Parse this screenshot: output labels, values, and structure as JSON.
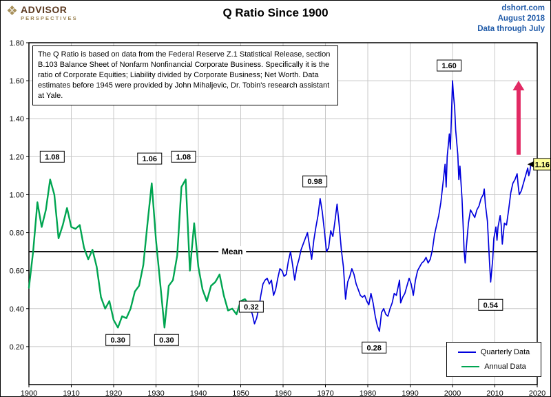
{
  "header": {
    "logo": {
      "mark": "❖",
      "top": "ADVISOR",
      "bottom": "PERSPECTIVES"
    },
    "title": "Q Ratio Since 1900",
    "right": {
      "site": "dshort.com",
      "date": "August 2018",
      "note": "Data through July"
    }
  },
  "annotation_text": "The Q Ratio is based on data from the Federal Reserve Z.1 Statistical Release, section B.103 Balance Sheet of Nonfarm Nonfinancial Corporate Business. Specifically it is the ratio of Corporate Equities; Liability divided by Corporate Business; Net Worth.  Data estimates before 1945 were provided by John Mihaljevic, Dr. Tobin's research assistant at Yale.",
  "colors": {
    "grid": "#c8c8c8",
    "axis": "#000000",
    "blue_series": "#0000dc",
    "green_series": "#00a551",
    "header_blue": "#1f5aa8",
    "callout_bg": "#ffff99",
    "arrow": "#e22a64"
  },
  "chart_data": {
    "type": "line",
    "title": "Q Ratio Since 1900",
    "xlabel": "",
    "ylabel": "",
    "x_range": [
      1900,
      2020
    ],
    "y_range": [
      0,
      1.8
    ],
    "x_ticks": [
      1900,
      1910,
      1920,
      1930,
      1940,
      1950,
      1960,
      1970,
      1980,
      1990,
      2000,
      2010,
      2020
    ],
    "y_ticks": [
      0.2,
      0.4,
      0.6,
      0.8,
      1.0,
      1.2,
      1.4,
      1.6,
      1.8
    ],
    "grid": true,
    "mean": {
      "value": 0.7,
      "label": "Mean",
      "label_x": 1948
    },
    "series": [
      {
        "name": "Annual Data",
        "color": "#00a551",
        "width": 2.4,
        "points": [
          [
            1900,
            0.51
          ],
          [
            1901,
            0.7
          ],
          [
            1902,
            0.96
          ],
          [
            1903,
            0.83
          ],
          [
            1904,
            0.92
          ],
          [
            1905,
            1.08
          ],
          [
            1906,
            1.0
          ],
          [
            1907,
            0.77
          ],
          [
            1908,
            0.84
          ],
          [
            1909,
            0.93
          ],
          [
            1910,
            0.83
          ],
          [
            1911,
            0.82
          ],
          [
            1912,
            0.84
          ],
          [
            1913,
            0.72
          ],
          [
            1914,
            0.66
          ],
          [
            1915,
            0.71
          ],
          [
            1916,
            0.62
          ],
          [
            1917,
            0.46
          ],
          [
            1918,
            0.4
          ],
          [
            1919,
            0.44
          ],
          [
            1920,
            0.34
          ],
          [
            1921,
            0.3
          ],
          [
            1922,
            0.36
          ],
          [
            1923,
            0.35
          ],
          [
            1924,
            0.4
          ],
          [
            1925,
            0.49
          ],
          [
            1926,
            0.52
          ],
          [
            1927,
            0.63
          ],
          [
            1928,
            0.85
          ],
          [
            1929,
            1.06
          ],
          [
            1930,
            0.76
          ],
          [
            1931,
            0.53
          ],
          [
            1932,
            0.3
          ],
          [
            1933,
            0.52
          ],
          [
            1934,
            0.55
          ],
          [
            1935,
            0.68
          ],
          [
            1936,
            1.04
          ],
          [
            1937,
            1.08
          ],
          [
            1938,
            0.6
          ],
          [
            1939,
            0.85
          ],
          [
            1940,
            0.62
          ],
          [
            1941,
            0.5
          ],
          [
            1942,
            0.44
          ],
          [
            1943,
            0.52
          ],
          [
            1944,
            0.54
          ],
          [
            1945,
            0.58
          ],
          [
            1946,
            0.47
          ],
          [
            1947,
            0.39
          ],
          [
            1948,
            0.4
          ],
          [
            1949,
            0.37
          ],
          [
            1950,
            0.44
          ],
          [
            1951,
            0.45
          ],
          [
            1952,
            0.42
          ]
        ]
      },
      {
        "name": "Quarterly Data",
        "color": "#0000dc",
        "width": 1.7,
        "points": [
          [
            1952.25,
            0.4
          ],
          [
            1952.75,
            0.37
          ],
          [
            1953.25,
            0.32
          ],
          [
            1953.75,
            0.35
          ],
          [
            1954.25,
            0.4
          ],
          [
            1954.75,
            0.47
          ],
          [
            1955.25,
            0.53
          ],
          [
            1955.75,
            0.55
          ],
          [
            1956.25,
            0.56
          ],
          [
            1956.75,
            0.53
          ],
          [
            1957.25,
            0.55
          ],
          [
            1957.75,
            0.47
          ],
          [
            1958.25,
            0.5
          ],
          [
            1958.75,
            0.56
          ],
          [
            1959.25,
            0.61
          ],
          [
            1959.75,
            0.6
          ],
          [
            1960.25,
            0.57
          ],
          [
            1960.75,
            0.58
          ],
          [
            1961.25,
            0.65
          ],
          [
            1961.75,
            0.7
          ],
          [
            1962.25,
            0.63
          ],
          [
            1962.75,
            0.55
          ],
          [
            1963.25,
            0.62
          ],
          [
            1963.75,
            0.66
          ],
          [
            1964.25,
            0.71
          ],
          [
            1964.75,
            0.74
          ],
          [
            1965.25,
            0.77
          ],
          [
            1965.75,
            0.8
          ],
          [
            1966.25,
            0.73
          ],
          [
            1966.75,
            0.66
          ],
          [
            1967.25,
            0.76
          ],
          [
            1967.75,
            0.83
          ],
          [
            1968.25,
            0.89
          ],
          [
            1968.75,
            0.98
          ],
          [
            1969.25,
            0.91
          ],
          [
            1969.75,
            0.81
          ],
          [
            1970.25,
            0.7
          ],
          [
            1970.75,
            0.72
          ],
          [
            1971.25,
            0.81
          ],
          [
            1971.75,
            0.78
          ],
          [
            1972.25,
            0.86
          ],
          [
            1972.75,
            0.95
          ],
          [
            1973.25,
            0.84
          ],
          [
            1973.75,
            0.71
          ],
          [
            1974.25,
            0.62
          ],
          [
            1974.75,
            0.45
          ],
          [
            1975.25,
            0.54
          ],
          [
            1975.75,
            0.57
          ],
          [
            1976.25,
            0.61
          ],
          [
            1976.75,
            0.58
          ],
          [
            1977.25,
            0.53
          ],
          [
            1977.75,
            0.5
          ],
          [
            1978.25,
            0.47
          ],
          [
            1978.75,
            0.46
          ],
          [
            1979.25,
            0.47
          ],
          [
            1979.75,
            0.44
          ],
          [
            1980.25,
            0.42
          ],
          [
            1980.75,
            0.48
          ],
          [
            1981.25,
            0.43
          ],
          [
            1981.75,
            0.36
          ],
          [
            1982.25,
            0.31
          ],
          [
            1982.75,
            0.28
          ],
          [
            1983.25,
            0.38
          ],
          [
            1983.75,
            0.4
          ],
          [
            1984.25,
            0.37
          ],
          [
            1984.75,
            0.36
          ],
          [
            1985.25,
            0.4
          ],
          [
            1985.75,
            0.43
          ],
          [
            1986.25,
            0.48
          ],
          [
            1986.75,
            0.47
          ],
          [
            1987.5,
            0.55
          ],
          [
            1987.75,
            0.43
          ],
          [
            1988.25,
            0.46
          ],
          [
            1988.75,
            0.48
          ],
          [
            1989.25,
            0.52
          ],
          [
            1989.75,
            0.56
          ],
          [
            1990.25,
            0.53
          ],
          [
            1990.75,
            0.47
          ],
          [
            1991.25,
            0.55
          ],
          [
            1991.75,
            0.6
          ],
          [
            1992.25,
            0.62
          ],
          [
            1992.75,
            0.64
          ],
          [
            1993.25,
            0.65
          ],
          [
            1993.75,
            0.67
          ],
          [
            1994.25,
            0.64
          ],
          [
            1994.75,
            0.66
          ],
          [
            1995.25,
            0.71
          ],
          [
            1995.75,
            0.79
          ],
          [
            1996.25,
            0.84
          ],
          [
            1996.75,
            0.89
          ],
          [
            1997.25,
            0.96
          ],
          [
            1997.75,
            1.06
          ],
          [
            1998.25,
            1.16
          ],
          [
            1998.5,
            1.04
          ],
          [
            1998.75,
            1.2
          ],
          [
            1999.25,
            1.32
          ],
          [
            1999.5,
            1.24
          ],
          [
            1999.75,
            1.42
          ],
          [
            2000.0,
            1.6
          ],
          [
            2000.25,
            1.52
          ],
          [
            2000.5,
            1.46
          ],
          [
            2000.75,
            1.34
          ],
          [
            2001.25,
            1.21
          ],
          [
            2001.5,
            1.08
          ],
          [
            2001.75,
            1.15
          ],
          [
            2002.25,
            0.98
          ],
          [
            2002.5,
            0.84
          ],
          [
            2002.75,
            0.7
          ],
          [
            2003.0,
            0.64
          ],
          [
            2003.25,
            0.72
          ],
          [
            2003.75,
            0.85
          ],
          [
            2004.25,
            0.92
          ],
          [
            2004.75,
            0.9
          ],
          [
            2005.25,
            0.88
          ],
          [
            2005.75,
            0.92
          ],
          [
            2006.25,
            0.94
          ],
          [
            2006.75,
            0.98
          ],
          [
            2007.25,
            1.0
          ],
          [
            2007.5,
            1.03
          ],
          [
            2007.75,
            0.95
          ],
          [
            2008.25,
            0.86
          ],
          [
            2008.75,
            0.64
          ],
          [
            2009.0,
            0.54
          ],
          [
            2009.5,
            0.66
          ],
          [
            2009.75,
            0.77
          ],
          [
            2010.25,
            0.83
          ],
          [
            2010.5,
            0.76
          ],
          [
            2010.75,
            0.83
          ],
          [
            2011.25,
            0.89
          ],
          [
            2011.5,
            0.84
          ],
          [
            2011.75,
            0.74
          ],
          [
            2012.25,
            0.85
          ],
          [
            2012.75,
            0.84
          ],
          [
            2013.25,
            0.92
          ],
          [
            2013.75,
            1.01
          ],
          [
            2014.25,
            1.06
          ],
          [
            2014.75,
            1.08
          ],
          [
            2015.25,
            1.11
          ],
          [
            2015.5,
            1.05
          ],
          [
            2015.75,
            1.0
          ],
          [
            2016.25,
            1.02
          ],
          [
            2016.75,
            1.06
          ],
          [
            2017.25,
            1.1
          ],
          [
            2017.75,
            1.14
          ],
          [
            2018.0,
            1.1
          ],
          [
            2018.25,
            1.12
          ],
          [
            2018.5,
            1.16
          ]
        ]
      }
    ],
    "point_labels": [
      {
        "text": "1.08",
        "x": 1905.5,
        "y": 1.2
      },
      {
        "text": "1.06",
        "x": 1928.5,
        "y": 1.19
      },
      {
        "text": "1.08",
        "x": 1936.5,
        "y": 1.2
      },
      {
        "text": "0.30",
        "x": 1921.0,
        "y": 0.235
      },
      {
        "text": "0.30",
        "x": 1932.5,
        "y": 0.235
      },
      {
        "text": "0.32",
        "x": 1952.5,
        "y": 0.41
      },
      {
        "text": "0.98",
        "x": 1967.5,
        "y": 1.07
      },
      {
        "text": "0.28",
        "x": 1981.5,
        "y": 0.195
      },
      {
        "text": "1.60",
        "x": 1999.2,
        "y": 1.68
      },
      {
        "text": "0.54",
        "x": 2009.0,
        "y": 0.42
      }
    ],
    "current_callout": {
      "text": "1.16",
      "x": 2018.5,
      "y": 1.16
    },
    "trend_arrow": {
      "x": 2015.6,
      "y_start": 1.21,
      "y_end": 1.6
    },
    "legend": {
      "position": "bottom-right",
      "items": [
        {
          "label": "Quarterly Data",
          "color": "#0000dc"
        },
        {
          "label": "Annual Data",
          "color": "#00a551"
        }
      ]
    }
  }
}
